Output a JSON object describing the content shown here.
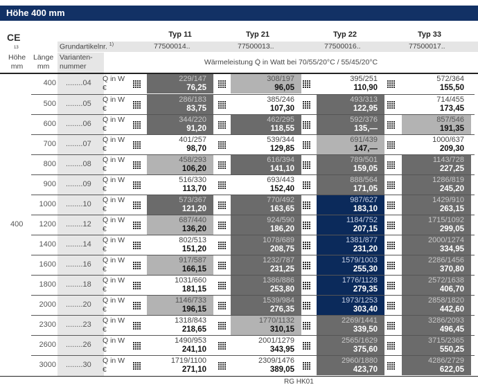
{
  "title": "Höhe 400 mm",
  "ce_mark": "CE",
  "ce_number": "13",
  "header": {
    "grundartikel": "Grundartikelnr.",
    "footnote": "1)",
    "hoehe": "Höhe",
    "hoehe_unit": "mm",
    "laenge": "Länge",
    "laenge_unit": "mm",
    "variant1": "Varianten-",
    "variant2": "nummer",
    "waerme": "Wärmeleistung Q̇ in Watt bei 70/55/20°C / 55/45/20°C"
  },
  "types": [
    {
      "name": "Typ 11",
      "article": "77500014.."
    },
    {
      "name": "Typ 21",
      "article": "77500013.."
    },
    {
      "name": "Typ 22",
      "article": "77500016.."
    },
    {
      "name": "Typ 33",
      "article": "77500017.."
    }
  ],
  "hoehe_value": "400",
  "q_label": "Q̇ in W",
  "euro_label": "€",
  "colors": {
    "header": "#123165",
    "white": "#ffffff",
    "light": "#b3b3b3",
    "dark": "#6b6b6b",
    "blue": "#0b2a5b"
  },
  "rows": [
    {
      "length": "400",
      "variant": "........04",
      "cells": [
        [
          "229/147",
          "76,25",
          "d"
        ],
        [
          "308/197",
          "96,05",
          "l"
        ],
        [
          "395/251",
          "110,90",
          "w"
        ],
        [
          "572/364",
          "155,50",
          "w"
        ]
      ]
    },
    {
      "length": "500",
      "variant": "........05",
      "cells": [
        [
          "286/183",
          "83,75",
          "d"
        ],
        [
          "385/246",
          "107,30",
          "w"
        ],
        [
          "493/313",
          "122,95",
          "d"
        ],
        [
          "714/455",
          "173,45",
          "w"
        ]
      ]
    },
    {
      "length": "600",
      "variant": "........06",
      "cells": [
        [
          "344/220",
          "91,20",
          "d"
        ],
        [
          "462/295",
          "118,55",
          "d"
        ],
        [
          "592/376",
          "135,—",
          "d"
        ],
        [
          "857/546",
          "191,35",
          "l"
        ]
      ]
    },
    {
      "length": "700",
      "variant": "........07",
      "cells": [
        [
          "401/257",
          "98,70",
          "w"
        ],
        [
          "539/344",
          "129,85",
          "w"
        ],
        [
          "691/439",
          "147,—",
          "l"
        ],
        [
          "1000/637",
          "209,30",
          "w"
        ]
      ]
    },
    {
      "length": "800",
      "variant": "........08",
      "cells": [
        [
          "458/293",
          "106,20",
          "l"
        ],
        [
          "616/394",
          "141,10",
          "d"
        ],
        [
          "789/501",
          "159,05",
          "d"
        ],
        [
          "1143/728",
          "227,25",
          "d"
        ]
      ]
    },
    {
      "length": "900",
      "variant": "........09",
      "cells": [
        [
          "516/330",
          "113,70",
          "w"
        ],
        [
          "693/443",
          "152,40",
          "w"
        ],
        [
          "888/564",
          "171,05",
          "d"
        ],
        [
          "1286/819",
          "245,20",
          "d"
        ]
      ]
    },
    {
      "length": "1000",
      "variant": "........10",
      "cells": [
        [
          "573/367",
          "121,20",
          "d"
        ],
        [
          "770/492",
          "163,65",
          "d"
        ],
        [
          "987/627",
          "183,10",
          "b"
        ],
        [
          "1429/910",
          "263,15",
          "d"
        ]
      ]
    },
    {
      "length": "1200",
      "variant": "........12",
      "cells": [
        [
          "687/440",
          "136,20",
          "l"
        ],
        [
          "924/590",
          "186,20",
          "d"
        ],
        [
          "1184/752",
          "207,15",
          "b"
        ],
        [
          "1715/1092",
          "299,05",
          "d"
        ]
      ]
    },
    {
      "length": "1400",
      "variant": "........14",
      "cells": [
        [
          "802/513",
          "151,20",
          "w"
        ],
        [
          "1078/689",
          "208,75",
          "d"
        ],
        [
          "1381/877",
          "231,20",
          "b"
        ],
        [
          "2000/1274",
          "334,95",
          "d"
        ]
      ]
    },
    {
      "length": "1600",
      "variant": "........16",
      "cells": [
        [
          "917/587",
          "166,15",
          "l"
        ],
        [
          "1232/787",
          "231,25",
          "d"
        ],
        [
          "1579/1003",
          "255,30",
          "b"
        ],
        [
          "2286/1456",
          "370,80",
          "d"
        ]
      ]
    },
    {
      "length": "1800",
      "variant": "........18",
      "cells": [
        [
          "1031/660",
          "181,15",
          "w"
        ],
        [
          "1386/886",
          "253,80",
          "d"
        ],
        [
          "1776/1128",
          "279,35",
          "b"
        ],
        [
          "2572/1638",
          "406,70",
          "d"
        ]
      ]
    },
    {
      "length": "2000",
      "variant": "........20",
      "cells": [
        [
          "1146/733",
          "196,15",
          "l"
        ],
        [
          "1539/984",
          "276,35",
          "d"
        ],
        [
          "1973/1253",
          "303,40",
          "b"
        ],
        [
          "2858/1820",
          "442,60",
          "d"
        ]
      ]
    },
    {
      "length": "2300",
      "variant": "........23",
      "cells": [
        [
          "1318/843",
          "218,65",
          "w"
        ],
        [
          "1770/1132",
          "310,15",
          "l"
        ],
        [
          "2269/1441",
          "339,50",
          "d"
        ],
        [
          "3286/2093",
          "496,45",
          "d"
        ]
      ]
    },
    {
      "length": "2600",
      "variant": "........26",
      "cells": [
        [
          "1490/953",
          "241,10",
          "w"
        ],
        [
          "2001/1279",
          "343,95",
          "w"
        ],
        [
          "2565/1629",
          "375,60",
          "d"
        ],
        [
          "3715/2365",
          "550,25",
          "d"
        ]
      ]
    },
    {
      "length": "3000",
      "variant": "........30",
      "cells": [
        [
          "1719/1100",
          "271,10",
          "w"
        ],
        [
          "2309/1476",
          "389,05",
          "w"
        ],
        [
          "2960/1880",
          "423,70",
          "d"
        ],
        [
          "4286/2729",
          "622,05",
          "d"
        ]
      ]
    }
  ],
  "footer": "RG HK01"
}
